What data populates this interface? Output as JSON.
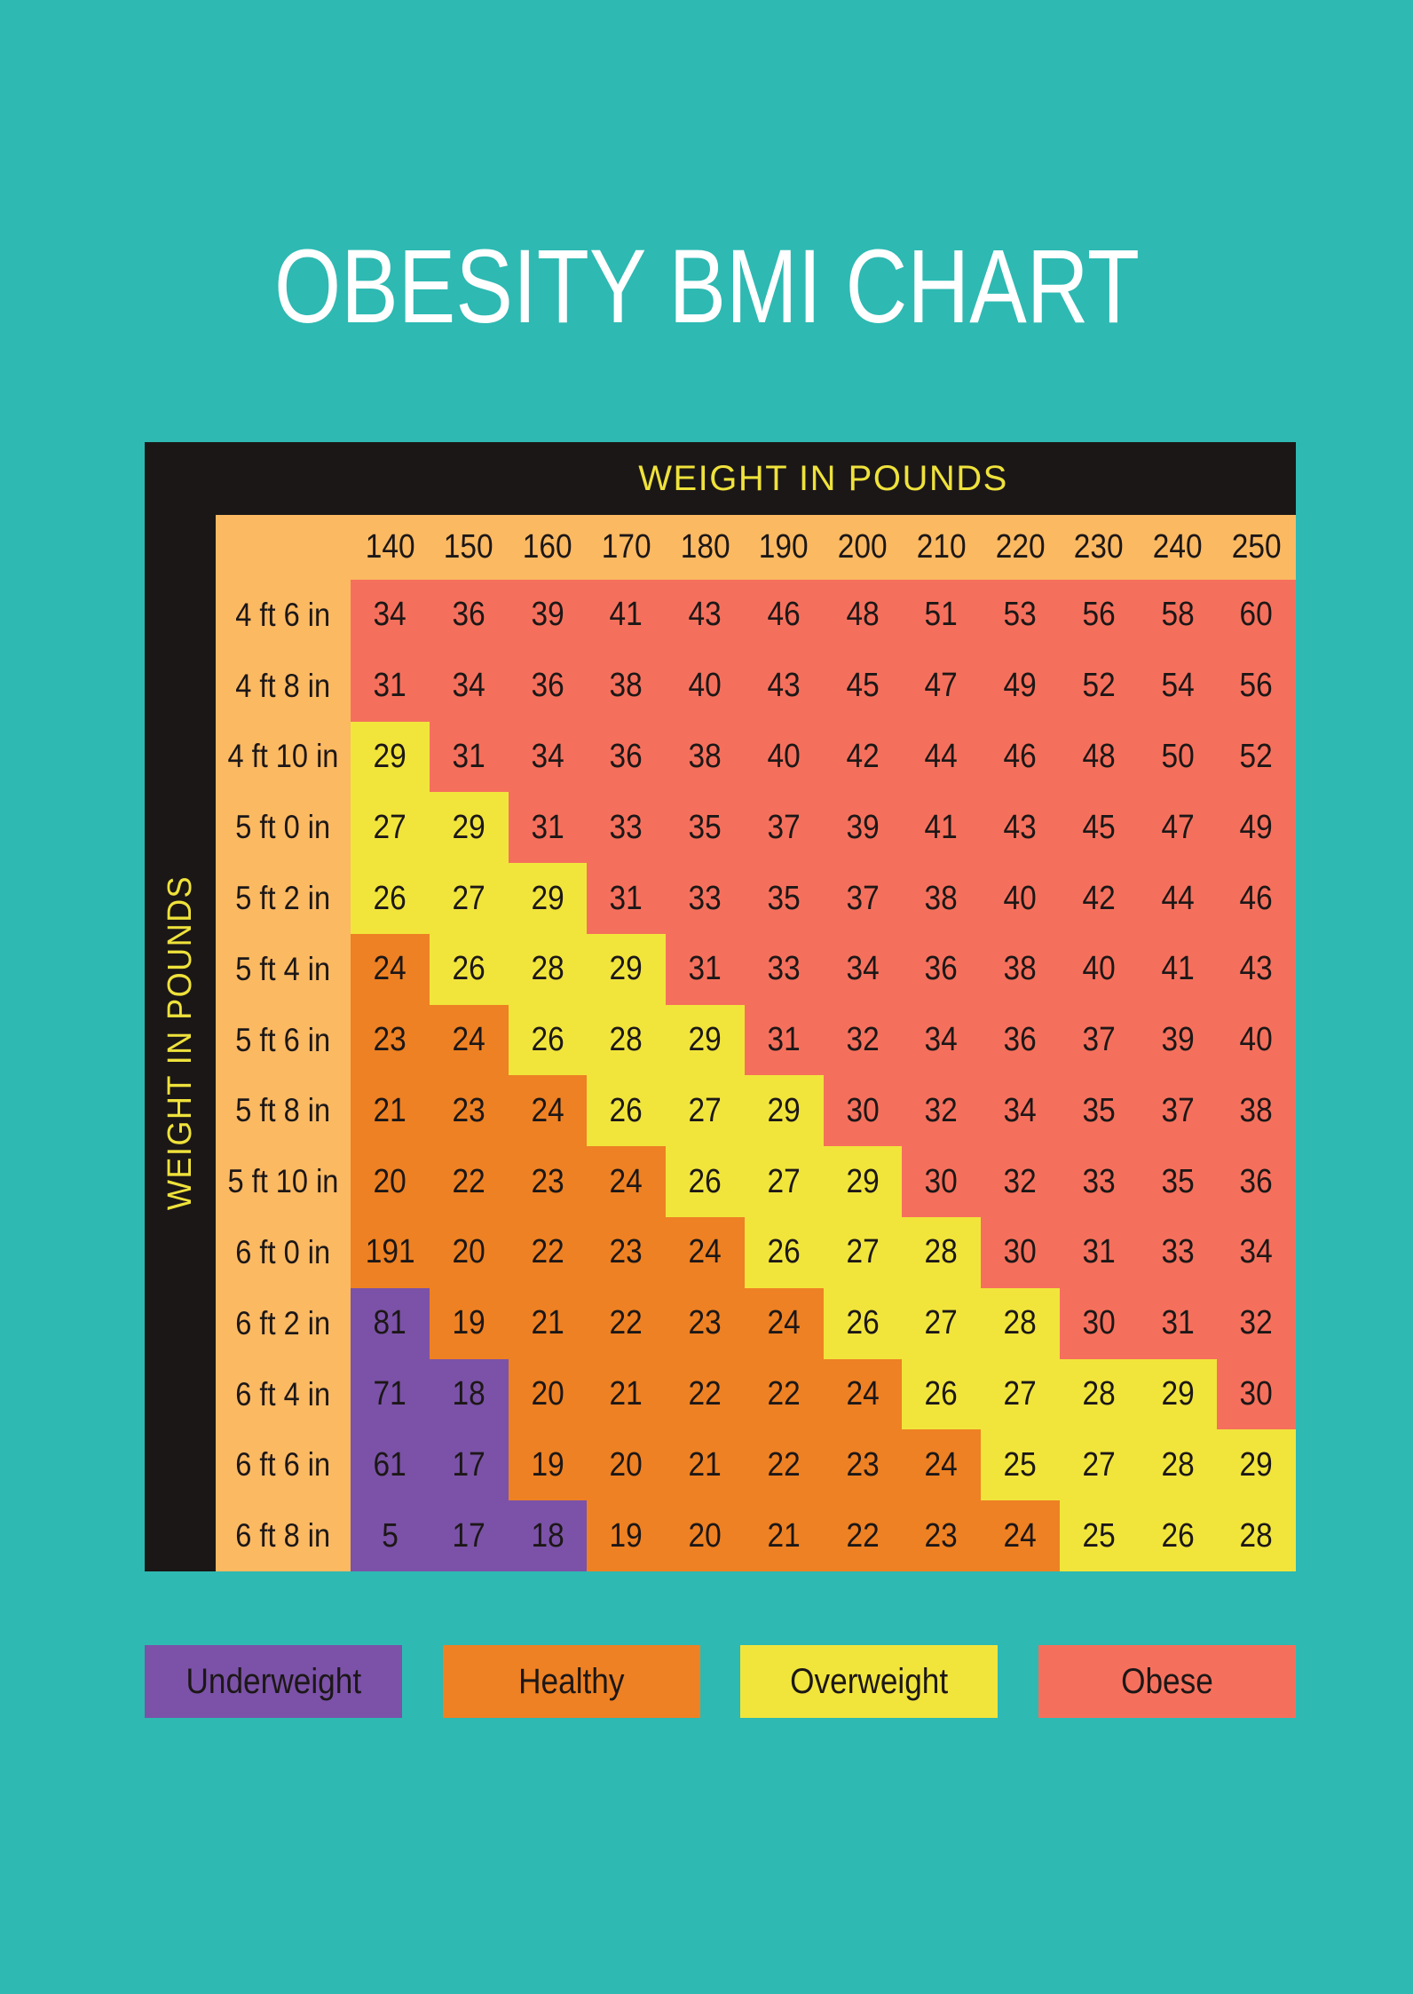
{
  "title": "OBESITY BMI CHART",
  "chart_data": {
    "type": "heatmap",
    "title": "OBESITY BMI CHART",
    "x_label": "WEIGHT IN POUNDS",
    "y_label": "WEIGHT IN POUNDS",
    "x_categories": [
      "140",
      "150",
      "160",
      "170",
      "180",
      "190",
      "200",
      "210",
      "220",
      "230",
      "240",
      "250"
    ],
    "y_categories": [
      "4 ft 6 in",
      "4 ft 8 in",
      "4 ft 10 in",
      "5 ft 0 in",
      "5 ft 2 in",
      "5 ft 4 in",
      "5 ft 6 in",
      "5 ft 8 in",
      "5 ft 10 in",
      "6 ft 0 in",
      "6 ft 2 in",
      "6 ft 4 in",
      "6 ft 6 in",
      "6 ft 8 in"
    ],
    "zone_key": {
      "U": "Underweight",
      "H": "Healthy",
      "Y": "Overweight",
      "O": "Obese"
    },
    "rows": [
      {
        "label": "4 ft 6 in",
        "values": [
          34,
          36,
          39,
          41,
          43,
          46,
          48,
          51,
          53,
          56,
          58,
          60
        ],
        "zones": [
          "O",
          "O",
          "O",
          "O",
          "O",
          "O",
          "O",
          "O",
          "O",
          "O",
          "O",
          "O"
        ]
      },
      {
        "label": "4 ft 8 in",
        "values": [
          31,
          34,
          36,
          38,
          40,
          43,
          45,
          47,
          49,
          52,
          54,
          56
        ],
        "zones": [
          "O",
          "O",
          "O",
          "O",
          "O",
          "O",
          "O",
          "O",
          "O",
          "O",
          "O",
          "O"
        ]
      },
      {
        "label": "4 ft 10 in",
        "values": [
          29,
          31,
          34,
          36,
          38,
          40,
          42,
          44,
          46,
          48,
          50,
          52
        ],
        "zones": [
          "Y",
          "O",
          "O",
          "O",
          "O",
          "O",
          "O",
          "O",
          "O",
          "O",
          "O",
          "O"
        ]
      },
      {
        "label": "5 ft 0 in",
        "values": [
          27,
          29,
          31,
          33,
          35,
          37,
          39,
          41,
          43,
          45,
          47,
          49
        ],
        "zones": [
          "Y",
          "Y",
          "O",
          "O",
          "O",
          "O",
          "O",
          "O",
          "O",
          "O",
          "O",
          "O"
        ]
      },
      {
        "label": "5 ft 2 in",
        "values": [
          26,
          27,
          29,
          31,
          33,
          35,
          37,
          38,
          40,
          42,
          44,
          46
        ],
        "zones": [
          "Y",
          "Y",
          "Y",
          "O",
          "O",
          "O",
          "O",
          "O",
          "O",
          "O",
          "O",
          "O"
        ]
      },
      {
        "label": "5 ft 4 in",
        "values": [
          24,
          26,
          28,
          29,
          31,
          33,
          34,
          36,
          38,
          40,
          41,
          43
        ],
        "zones": [
          "H",
          "Y",
          "Y",
          "Y",
          "O",
          "O",
          "O",
          "O",
          "O",
          "O",
          "O",
          "O"
        ]
      },
      {
        "label": "5 ft 6 in",
        "values": [
          23,
          24,
          26,
          28,
          29,
          31,
          32,
          34,
          36,
          37,
          39,
          40
        ],
        "zones": [
          "H",
          "H",
          "Y",
          "Y",
          "Y",
          "O",
          "O",
          "O",
          "O",
          "O",
          "O",
          "O"
        ]
      },
      {
        "label": "5 ft 8 in",
        "values": [
          21,
          23,
          24,
          26,
          27,
          29,
          30,
          32,
          34,
          35,
          37,
          38
        ],
        "zones": [
          "H",
          "H",
          "H",
          "Y",
          "Y",
          "Y",
          "O",
          "O",
          "O",
          "O",
          "O",
          "O"
        ]
      },
      {
        "label": "5 ft 10 in",
        "values": [
          20,
          22,
          23,
          24,
          26,
          27,
          29,
          30,
          32,
          33,
          35,
          36
        ],
        "zones": [
          "H",
          "H",
          "H",
          "H",
          "Y",
          "Y",
          "Y",
          "O",
          "O",
          "O",
          "O",
          "O"
        ]
      },
      {
        "label": "6 ft 0 in",
        "values": [
          191,
          20,
          22,
          23,
          24,
          26,
          27,
          28,
          30,
          31,
          33,
          34
        ],
        "zones": [
          "H",
          "H",
          "H",
          "H",
          "H",
          "Y",
          "Y",
          "Y",
          "O",
          "O",
          "O",
          "O"
        ]
      },
      {
        "label": "6 ft 2 in",
        "values": [
          81,
          19,
          21,
          22,
          23,
          24,
          26,
          27,
          28,
          30,
          31,
          32
        ],
        "zones": [
          "U",
          "H",
          "H",
          "H",
          "H",
          "H",
          "Y",
          "Y",
          "Y",
          "O",
          "O",
          "O"
        ]
      },
      {
        "label": "6 ft 4 in",
        "values": [
          71,
          18,
          20,
          21,
          22,
          22,
          24,
          26,
          27,
          28,
          29,
          30
        ],
        "zones": [
          "U",
          "U",
          "H",
          "H",
          "H",
          "H",
          "H",
          "Y",
          "Y",
          "Y",
          "Y",
          "O"
        ]
      },
      {
        "label": "6 ft 6 in",
        "values": [
          61,
          17,
          19,
          20,
          21,
          22,
          23,
          24,
          25,
          27,
          28,
          29
        ],
        "zones": [
          "U",
          "U",
          "H",
          "H",
          "H",
          "H",
          "H",
          "H",
          "Y",
          "Y",
          "Y",
          "Y"
        ]
      },
      {
        "label": "6 ft 8 in",
        "values": [
          5,
          17,
          18,
          19,
          20,
          21,
          22,
          23,
          24,
          25,
          26,
          28
        ],
        "zones": [
          "U",
          "U",
          "U",
          "H",
          "H",
          "H",
          "H",
          "H",
          "H",
          "Y",
          "Y",
          "Y"
        ]
      }
    ],
    "legend": [
      {
        "label": "Underweight",
        "zone": "U",
        "key": "underweight"
      },
      {
        "label": "Healthy",
        "zone": "H",
        "key": "healthy"
      },
      {
        "label": "Overweight",
        "zone": "Y",
        "key": "overweight"
      },
      {
        "label": "Obese",
        "zone": "O",
        "key": "obese"
      }
    ]
  },
  "colors": {
    "background": "#2EB9B2",
    "frame": "#1B1717",
    "header_bg": "#FBB962",
    "axis_text": "#EFE23B",
    "title_text": "#FFFFFF",
    "cell_text": "#1C1717",
    "underweight": "#7B52A8",
    "healthy": "#EE8123",
    "overweight": "#F1E53C",
    "obese": "#F5705C"
  }
}
